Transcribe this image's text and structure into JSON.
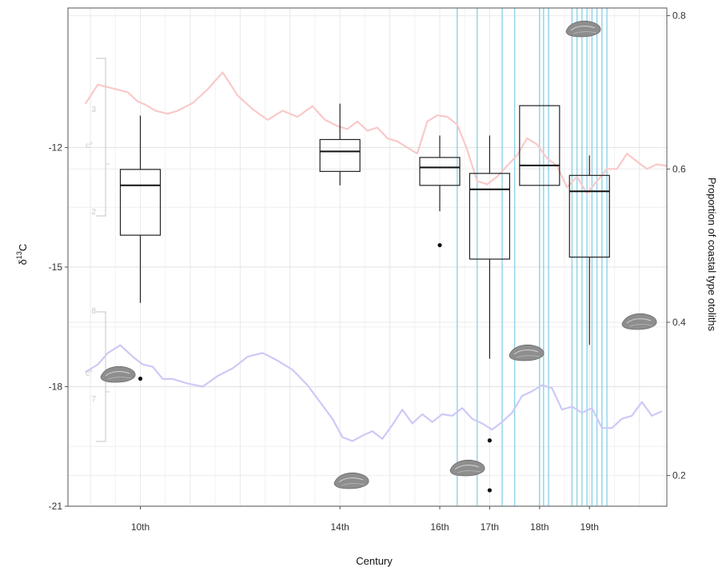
{
  "chart_data": {
    "type": "box",
    "xlabel": "Century",
    "ylabel_left": "δ13C",
    "ylabel_left_main": "δ",
    "ylabel_left_sup": "13",
    "ylabel_left_unit": "C",
    "ylabel_right": "Proportion of coastal type otoliths",
    "categories": [
      "10th",
      "14th",
      "16th",
      "17th",
      "18th",
      "19th"
    ],
    "category_positions": [
      10,
      14,
      16,
      17,
      18,
      19
    ],
    "xlim": [
      8.55,
      20.55
    ],
    "ylim_left": [
      -21,
      -8.5
    ],
    "ylim_right": [
      0.16,
      0.81
    ],
    "yticks_left": [
      -12,
      -15,
      -18,
      -21
    ],
    "yticks_left_labels": [
      "-12",
      "-15",
      "-18",
      "-21"
    ],
    "yticks_right": [
      0.8,
      0.6,
      0.4,
      0.2
    ],
    "yticks_right_labels": [
      "0.8",
      "0.6",
      "0.4",
      "0.2"
    ],
    "boxes": [
      {
        "category": "10th",
        "whisker_low": -15.9,
        "q1": -14.2,
        "median": -12.95,
        "q3": -12.55,
        "whisker_high": -11.2,
        "outliers": [
          -17.8
        ]
      },
      {
        "category": "14th",
        "whisker_low": -12.95,
        "q1": -12.6,
        "median": -12.1,
        "q3": -11.8,
        "whisker_high": -10.9,
        "outliers": []
      },
      {
        "category": "16th",
        "whisker_low": -13.6,
        "q1": -12.95,
        "median": -12.5,
        "q3": -12.25,
        "whisker_high": -11.7,
        "outliers": [
          -14.45
        ]
      },
      {
        "category": "17th",
        "whisker_low": -17.3,
        "q1": -14.8,
        "median": -13.05,
        "q3": -12.65,
        "whisker_high": -11.7,
        "outliers": [
          -19.35,
          -20.6
        ]
      },
      {
        "category": "18th",
        "whisker_low": -12.95,
        "q1": -12.95,
        "median": -12.45,
        "q3": -10.95,
        "whisker_high": -10.95,
        "outliers": []
      },
      {
        "category": "19th",
        "whisker_low": -16.95,
        "q1": -14.75,
        "median": -13.1,
        "q3": -12.7,
        "whisker_high": -12.2,
        "outliers": []
      }
    ],
    "series": [
      {
        "axis": "right",
        "color": "#f9c9c9",
        "x": [
          8.9,
          9.15,
          9.45,
          9.75,
          9.95,
          10.1,
          10.3,
          10.55,
          10.75,
          11.05,
          11.35,
          11.65,
          11.95,
          12.25,
          12.55,
          12.85,
          13.15,
          13.45,
          13.7,
          13.95,
          14.15,
          14.35,
          14.55,
          14.75,
          14.95,
          15.15,
          15.35,
          15.55,
          15.75,
          15.95,
          16.15,
          16.35,
          16.55,
          16.75,
          16.95,
          17.15,
          17.35,
          17.55,
          17.75,
          17.95,
          18.15,
          18.35,
          18.55,
          18.75,
          18.95,
          19.15,
          19.35,
          19.55,
          19.75,
          19.95,
          20.15,
          20.35,
          20.55
        ],
        "y": [
          0.685,
          0.71,
          0.705,
          0.7,
          0.688,
          0.684,
          0.676,
          0.672,
          0.676,
          0.686,
          0.704,
          0.726,
          0.696,
          0.678,
          0.664,
          0.676,
          0.668,
          0.682,
          0.664,
          0.656,
          0.652,
          0.662,
          0.65,
          0.654,
          0.64,
          0.636,
          0.628,
          0.62,
          0.662,
          0.67,
          0.668,
          0.658,
          0.625,
          0.584,
          0.58,
          0.59,
          0.604,
          0.618,
          0.64,
          0.632,
          0.614,
          0.604,
          0.576,
          0.59,
          0.568,
          0.584,
          0.6,
          0.6,
          0.62,
          0.61,
          0.6,
          0.606,
          0.604
        ]
      },
      {
        "axis": "right",
        "color": "#cdc9f7",
        "x": [
          8.9,
          9.15,
          9.35,
          9.6,
          9.85,
          10.05,
          10.25,
          10.45,
          10.65,
          10.95,
          11.25,
          11.55,
          11.85,
          12.15,
          12.45,
          12.75,
          13.05,
          13.35,
          13.6,
          13.85,
          14.05,
          14.25,
          14.45,
          14.65,
          14.85,
          15.05,
          15.25,
          15.45,
          15.65,
          15.85,
          16.05,
          16.25,
          16.45,
          16.65,
          16.85,
          17.05,
          17.25,
          17.45,
          17.65,
          17.85,
          18.05,
          18.25,
          18.45,
          18.65,
          18.85,
          19.05,
          19.25,
          19.45,
          19.65,
          19.85,
          20.05,
          20.25,
          20.45
        ],
        "y": [
          0.335,
          0.345,
          0.36,
          0.37,
          0.355,
          0.345,
          0.342,
          0.326,
          0.326,
          0.32,
          0.316,
          0.33,
          0.34,
          0.355,
          0.36,
          0.35,
          0.338,
          0.318,
          0.296,
          0.274,
          0.25,
          0.245,
          0.252,
          0.258,
          0.248,
          0.266,
          0.286,
          0.268,
          0.28,
          0.27,
          0.28,
          0.278,
          0.288,
          0.274,
          0.268,
          0.26,
          0.27,
          0.282,
          0.304,
          0.31,
          0.318,
          0.314,
          0.286,
          0.29,
          0.282,
          0.288,
          0.262,
          0.262,
          0.274,
          0.278,
          0.296,
          0.278,
          0.284
        ]
      }
    ],
    "vertical_lines": {
      "color": "#8fd2e8",
      "x": [
        16.35,
        16.75,
        17.25,
        17.5,
        18.0,
        18.08,
        18.18,
        18.65,
        18.75,
        18.85,
        18.95,
        19.05,
        19.15,
        19.25,
        19.35
      ]
    },
    "faint_brackets": [
      {
        "label": "c°",
        "ticks": [
          "3",
          "2"
        ]
      },
      {
        "label": "c°",
        "ticks": [
          "8",
          "7"
        ]
      }
    ],
    "grid": true,
    "legend": "none"
  }
}
